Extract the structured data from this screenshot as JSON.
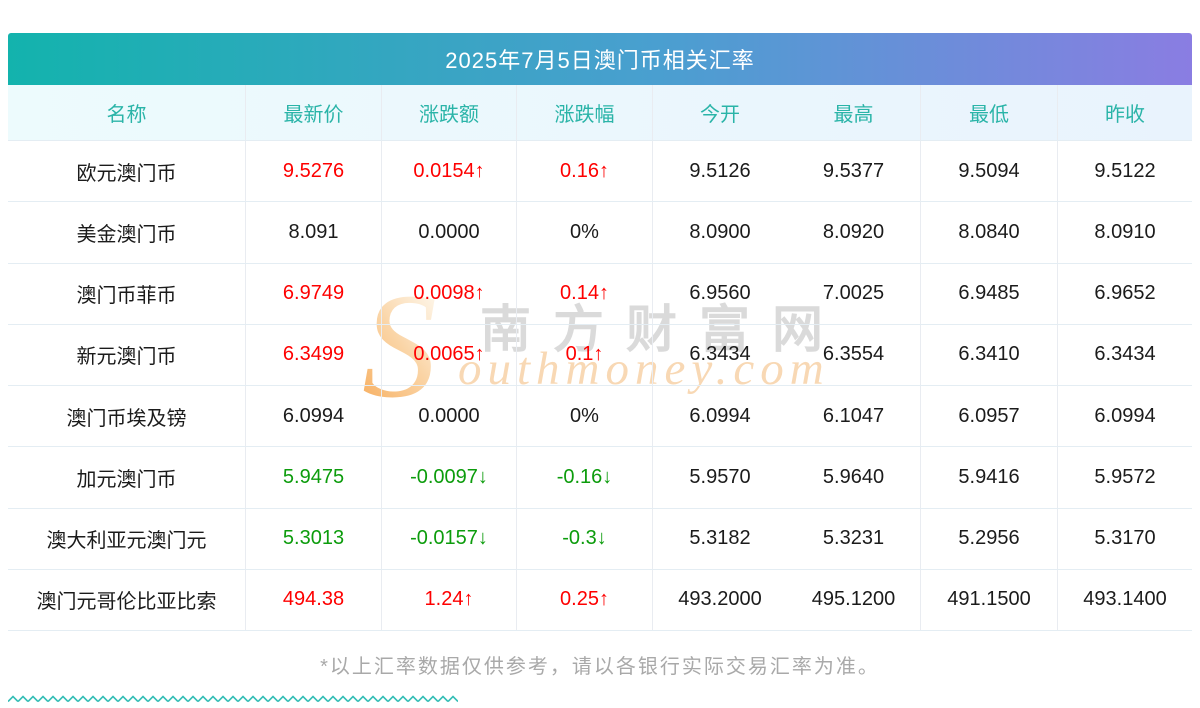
{
  "title": "2025年7月5日澳门币相关汇率",
  "chart_data": {
    "type": "table",
    "title": "2025年7月5日澳门币相关汇率",
    "columns": [
      "名称",
      "最新价",
      "涨跌额",
      "涨跌幅",
      "今开",
      "最高",
      "最低",
      "昨收"
    ],
    "rows": [
      [
        "欧元澳门币",
        "9.5276",
        "0.0154↑",
        "0.16↑",
        "9.5126",
        "9.5377",
        "9.5094",
        "9.5122"
      ],
      [
        "美金澳门币",
        "8.091",
        "0.0000",
        "0%",
        "8.0900",
        "8.0920",
        "8.0840",
        "8.0910"
      ],
      [
        "澳门币菲币",
        "6.9749",
        "0.0098↑",
        "0.14↑",
        "6.9560",
        "7.0025",
        "6.9485",
        "6.9652"
      ],
      [
        "新元澳门币",
        "6.3499",
        "0.0065↑",
        "0.1↑",
        "6.3434",
        "6.3554",
        "6.3410",
        "6.3434"
      ],
      [
        "澳门币埃及镑",
        "6.0994",
        "0.0000",
        "0%",
        "6.0994",
        "6.1047",
        "6.0957",
        "6.0994"
      ],
      [
        "加元澳门币",
        "5.9475",
        "-0.0097↓",
        "-0.16↓",
        "5.9570",
        "5.9640",
        "5.9416",
        "5.9572"
      ],
      [
        "澳大利亚元澳门元",
        "5.3013",
        "-0.0157↓",
        "-0.3↓",
        "5.3182",
        "5.3231",
        "5.2956",
        "5.3170"
      ],
      [
        "澳门元哥伦比亚比索",
        "494.38",
        "1.24↑",
        "0.25↑",
        "493.2000",
        "495.1200",
        "491.1500",
        "493.1400"
      ]
    ],
    "row_trends": [
      "up",
      "flat",
      "up",
      "up",
      "flat",
      "down",
      "down",
      "up"
    ],
    "legend_position": "none",
    "grid": "on"
  },
  "watermark": {
    "brand_cn": "南方财富网",
    "brand_en": "outhmoney.com"
  },
  "footer": {
    "disclaimer": "*以上汇率数据仅供参考，请以各银行实际交易汇率为准。"
  },
  "colors": {
    "up": "#fe0000",
    "down": "#0c9c0c",
    "flat": "#1b1b1b",
    "header_text": "#2ab4a8",
    "banner_left": "#13b3ad",
    "banner_right": "#8a7de2",
    "watermark_orange": "#f6a44c"
  }
}
